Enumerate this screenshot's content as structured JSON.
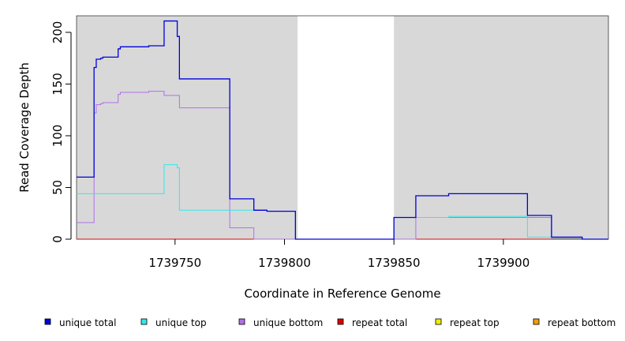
{
  "chart_data": {
    "type": "line",
    "xlabel": "Coordinate in Reference Genome",
    "ylabel": "Read Coverage Depth",
    "xlim": [
      1739705,
      1739948
    ],
    "ylim": [
      0,
      216
    ],
    "x_ticks": [
      1739750,
      1739800,
      1739850,
      1739900
    ],
    "y_ticks": [
      0,
      50,
      100,
      150,
      200
    ],
    "shaded_regions": [
      [
        1739705,
        1739806
      ],
      [
        1739850,
        1739948
      ]
    ],
    "shade_color": "#d8d8d8",
    "grid": false,
    "legend_placement": "bottom",
    "series": [
      {
        "name": "unique total",
        "color": "#0000dd",
        "points": [
          [
            1739705,
            60
          ],
          [
            1739713,
            60
          ],
          [
            1739713,
            166
          ],
          [
            1739714,
            166
          ],
          [
            1739714,
            174
          ],
          [
            1739716,
            174
          ],
          [
            1739716,
            175
          ],
          [
            1739717,
            175
          ],
          [
            1739717,
            176
          ],
          [
            1739724,
            176
          ],
          [
            1739724,
            184
          ],
          [
            1739725,
            184
          ],
          [
            1739725,
            186
          ],
          [
            1739738,
            186
          ],
          [
            1739738,
            187
          ],
          [
            1739745,
            187
          ],
          [
            1739745,
            211
          ],
          [
            1739751,
            211
          ],
          [
            1739751,
            196
          ],
          [
            1739752,
            196
          ],
          [
            1739752,
            155
          ],
          [
            1739775,
            155
          ],
          [
            1739775,
            39
          ],
          [
            1739786,
            39
          ],
          [
            1739786,
            28
          ],
          [
            1739792,
            28
          ],
          [
            1739792,
            27
          ],
          [
            1739805,
            27
          ],
          [
            1739805,
            0
          ],
          [
            1739850,
            0
          ],
          [
            1739850,
            21
          ],
          [
            1739860,
            21
          ],
          [
            1739860,
            42
          ],
          [
            1739875,
            42
          ],
          [
            1739875,
            44
          ],
          [
            1739911,
            44
          ],
          [
            1739911,
            23
          ],
          [
            1739922,
            23
          ],
          [
            1739922,
            2
          ],
          [
            1739936,
            2
          ],
          [
            1739936,
            0
          ],
          [
            1739948,
            0
          ]
        ]
      },
      {
        "name": "unique top",
        "color": "#33e8e8",
        "points": [
          [
            1739705,
            44
          ],
          [
            1739745,
            44
          ],
          [
            1739745,
            72
          ],
          [
            1739751,
            72
          ],
          [
            1739751,
            69
          ],
          [
            1739752,
            69
          ],
          [
            1739752,
            28
          ],
          [
            1739775,
            28
          ],
          [
            1739775,
            28
          ],
          [
            1739786,
            28
          ],
          [
            1739786,
            28
          ],
          [
            1739792,
            28
          ],
          [
            1739792,
            27
          ],
          [
            1739805,
            27
          ],
          [
            1739805,
            0
          ],
          [
            1739850,
            0
          ],
          [
            1739850,
            21
          ],
          [
            1739860,
            21
          ],
          [
            1739860,
            21
          ],
          [
            1739875,
            21
          ],
          [
            1739875,
            22
          ],
          [
            1739911,
            22
          ],
          [
            1739911,
            2
          ],
          [
            1739922,
            2
          ],
          [
            1739922,
            1
          ],
          [
            1739936,
            1
          ],
          [
            1739936,
            0
          ],
          [
            1739948,
            0
          ]
        ]
      },
      {
        "name": "unique bottom",
        "color": "#b070e8",
        "points": [
          [
            1739705,
            16
          ],
          [
            1739713,
            16
          ],
          [
            1739713,
            122
          ],
          [
            1739714,
            122
          ],
          [
            1739714,
            130
          ],
          [
            1739716,
            130
          ],
          [
            1739716,
            131
          ],
          [
            1739717,
            131
          ],
          [
            1739717,
            132
          ],
          [
            1739724,
            132
          ],
          [
            1739724,
            140
          ],
          [
            1739725,
            140
          ],
          [
            1739725,
            142
          ],
          [
            1739738,
            142
          ],
          [
            1739738,
            143
          ],
          [
            1739745,
            143
          ],
          [
            1739745,
            139
          ],
          [
            1739751,
            139
          ],
          [
            1739751,
            139
          ],
          [
            1739752,
            139
          ],
          [
            1739752,
            127
          ],
          [
            1739775,
            127
          ],
          [
            1739775,
            11
          ],
          [
            1739786,
            11
          ],
          [
            1739786,
            0
          ],
          [
            1739860,
            0
          ],
          [
            1739860,
            21
          ],
          [
            1739911,
            21
          ],
          [
            1739911,
            21
          ],
          [
            1739922,
            21
          ],
          [
            1739922,
            1
          ],
          [
            1739936,
            1
          ],
          [
            1739936,
            0
          ],
          [
            1739948,
            0
          ]
        ]
      },
      {
        "name": "repeat total",
        "color": "#dd0000",
        "points": [
          [
            1739705,
            0
          ],
          [
            1739948,
            0
          ]
        ]
      },
      {
        "name": "repeat top",
        "color": "#eeee00",
        "points": [
          [
            1739705,
            0
          ],
          [
            1739948,
            0
          ]
        ]
      },
      {
        "name": "repeat bottom",
        "color": "#f0a000",
        "points": [
          [
            1739705,
            0
          ],
          [
            1739948,
            0
          ]
        ]
      }
    ]
  }
}
